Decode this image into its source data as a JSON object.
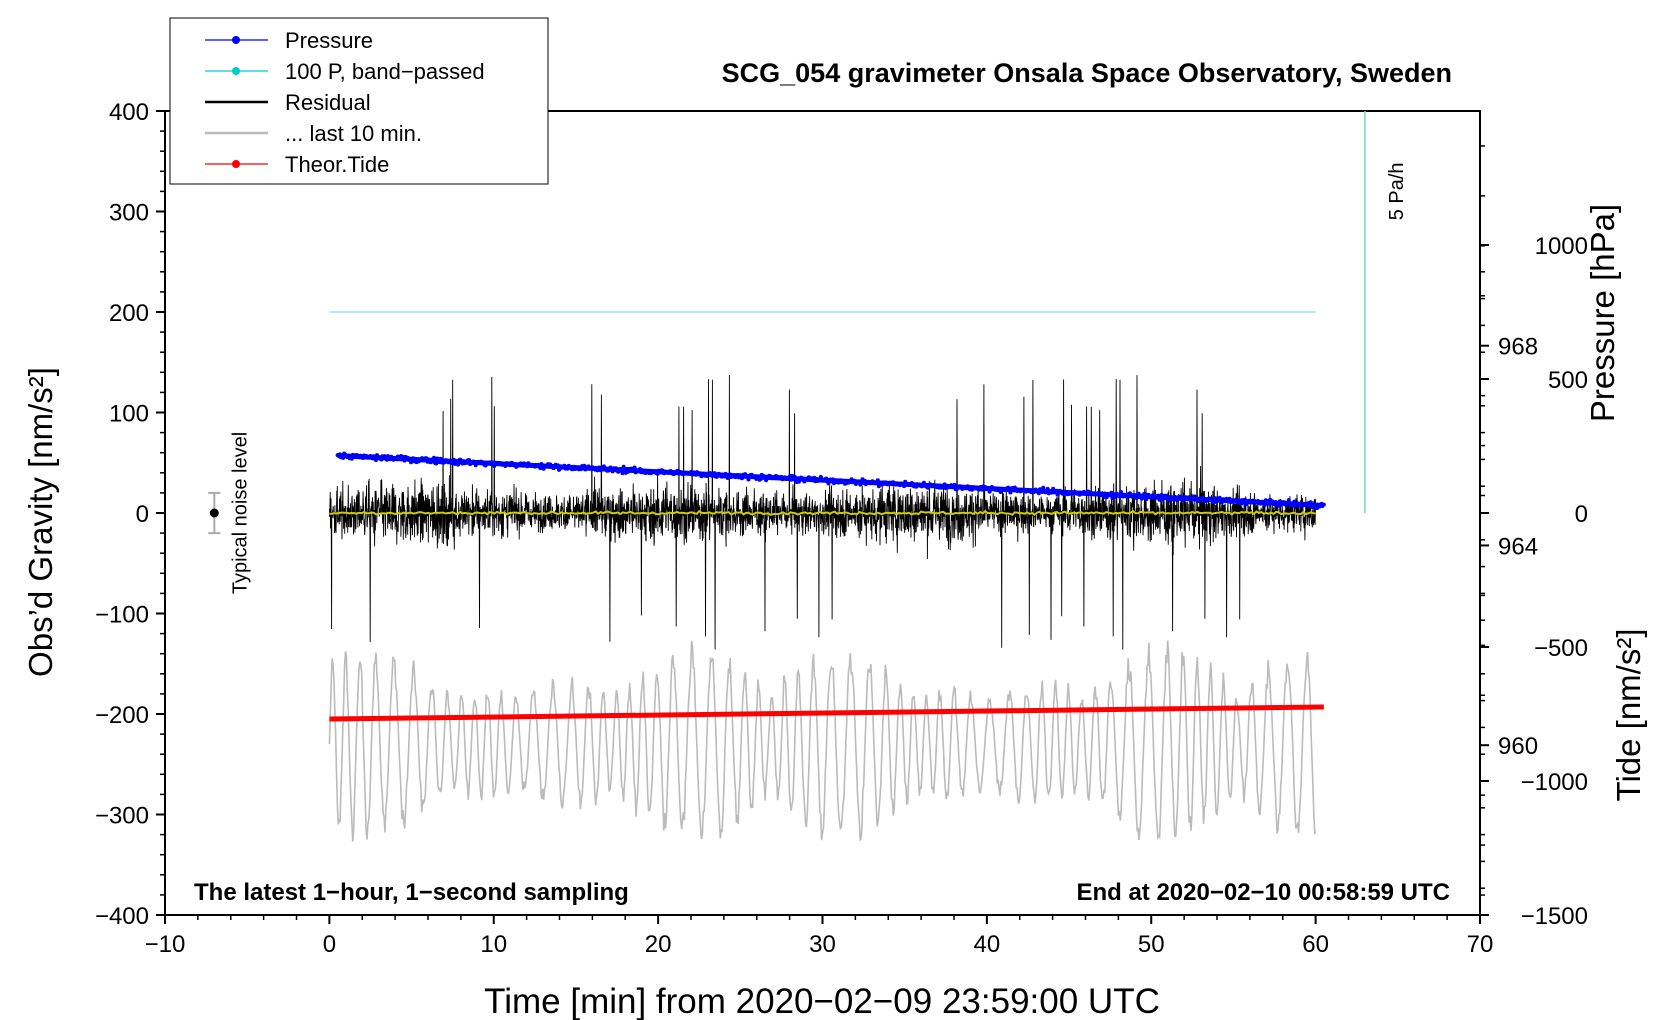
{
  "chart_data": {
    "type": "line",
    "title": "SCG_054 gravimeter Onsala Space Observatory, Sweden",
    "xlabel": "Time [min] from 2020−02−09 23:59:00 UTC",
    "ylabel_left": "Obs’d Gravity [nm/s²]",
    "ylabel_right_pressure": "Pressure [hPa]",
    "ylabel_right_tide": "Tide [nm/s²]",
    "xlim": [
      -10,
      70
    ],
    "ylim": [
      -400,
      400
    ],
    "x_ticks": [
      -10,
      0,
      10,
      20,
      30,
      40,
      50,
      60,
      70
    ],
    "x_tick_labels": [
      "−10",
      "0",
      "10",
      "20",
      "30",
      "40",
      "50",
      "60",
      "70"
    ],
    "y_ticks": [
      400,
      300,
      200,
      100,
      0,
      -100,
      -200,
      -300,
      -400
    ],
    "y_tick_labels": [
      "400",
      "300",
      "200",
      "100",
      "0",
      "−100",
      "−200",
      "−300",
      "−400"
    ],
    "pressure_axis": {
      "range_hPa": [
        956.6,
        972.7
      ],
      "ticks": [
        968,
        964,
        960
      ],
      "tick_labels": [
        "968",
        "964",
        "960"
      ]
    },
    "tide_axis": {
      "range": [
        -1500,
        1500
      ],
      "ticks": [
        1000,
        500,
        0,
        -500,
        -1000,
        -1500
      ],
      "tick_labels": [
        "1000",
        "500",
        "0",
        "−500",
        "−1000",
        "−1500"
      ]
    },
    "legend": [
      {
        "label": "Pressure",
        "color": "#0000ff",
        "marker": true
      },
      {
        "label": "100 P, band−passed",
        "color": "#00cccc",
        "marker": true
      },
      {
        "label": "Residual",
        "color": "#000000",
        "marker": false
      },
      {
        "label": "... last 10 min.",
        "color": "#bbbbbb",
        "marker": false
      },
      {
        "label": "Theor.Tide",
        "color": "#ff0000",
        "marker": true
      }
    ],
    "series": [
      {
        "name": "Pressure",
        "color": "#0000ff",
        "unit": "hPa",
        "x_start": 0.5,
        "x_end": 60.5,
        "y_start": 965.8,
        "y_end": 964.8,
        "note": "dense dotted series, slight noise"
      },
      {
        "name": "100 P, band-passed",
        "color": "#99e6e6",
        "x_range": [
          0,
          60
        ],
        "value": 200
      },
      {
        "name": "Residual",
        "color": "#000000",
        "x_range": [
          0,
          60
        ],
        "amplitude_typical": 45,
        "amplitude_peak": 140
      },
      {
        "name": "Residual mean",
        "color": "#cccc00",
        "x_range": [
          0,
          60
        ],
        "value": 0
      },
      {
        "name": "... last 10 min.",
        "color": "#bbbbbb",
        "x_range": [
          0,
          60
        ],
        "center": -230,
        "amplitude_peak": 110
      },
      {
        "name": "Theor.Tide",
        "color": "#ff0000",
        "x_range": [
          0,
          60.5
        ],
        "y_start": -205,
        "y_end": -193
      }
    ],
    "noise_bar": {
      "label": "Typical noise level",
      "x": -7,
      "center": 0,
      "half_range": 20
    },
    "scale_bar": {
      "label": "5 Pa/h",
      "x": 63,
      "y_top": 400,
      "y_bottom": 0
    },
    "annotations": {
      "bottom_left": "The latest 1−hour, 1−second sampling",
      "bottom_right": "End at 2020−02−10 00:58:59 UTC"
    }
  }
}
